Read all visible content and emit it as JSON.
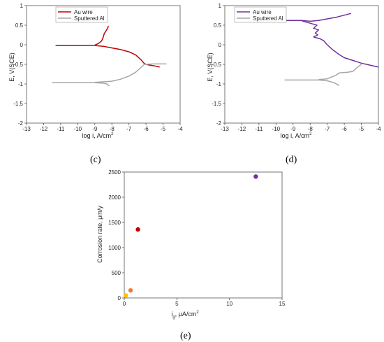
{
  "chart_data": [
    {
      "type": "line",
      "panel_label": "(c)",
      "xlabel": "log i, A/cm",
      "xlabel_sup": "2",
      "ylabel": "E, V(SCE)",
      "xlim": [
        -13,
        -4
      ],
      "ylim": [
        -2,
        1
      ],
      "xticks": [
        "-13",
        "-12",
        "-11",
        "-10",
        "-9",
        "-8",
        "-7",
        "-6",
        "-5",
        "-4"
      ],
      "yticks": [
        "-2",
        "-1.5",
        "-1",
        "-0.5",
        "0",
        "0.5",
        "1"
      ],
      "grid": false,
      "legend": "top-left",
      "series": [
        {
          "name": "Au wire",
          "color": "#c00000",
          "points": [
            [
              -11.3,
              -0.02
            ],
            [
              -10.5,
              -0.02
            ],
            [
              -10.0,
              -0.02
            ],
            [
              -9.5,
              -0.02
            ],
            [
              -9.0,
              -0.01
            ],
            [
              -8.8,
              0.03
            ],
            [
              -8.6,
              0.1
            ],
            [
              -8.5,
              0.2
            ],
            [
              -8.45,
              0.28
            ],
            [
              -8.35,
              0.35
            ],
            [
              -8.25,
              0.42
            ],
            [
              -8.2,
              0.48
            ],
            [
              -9.0,
              -0.02
            ],
            [
              -8.5,
              -0.04
            ],
            [
              -8.0,
              -0.08
            ],
            [
              -7.5,
              -0.12
            ],
            [
              -7.0,
              -0.18
            ],
            [
              -6.6,
              -0.26
            ],
            [
              -6.3,
              -0.38
            ],
            [
              -6.1,
              -0.48
            ],
            [
              -5.9,
              -0.51
            ],
            [
              -5.5,
              -0.54
            ],
            [
              -5.2,
              -0.57
            ]
          ]
        },
        {
          "name": "Sputtered Al",
          "color": "#a6a6a6",
          "points": [
            [
              -11.5,
              -0.97
            ],
            [
              -10.0,
              -0.97
            ],
            [
              -9.0,
              -0.97
            ],
            [
              -8.5,
              -0.98
            ],
            [
              -8.3,
              -1.0
            ],
            [
              -8.15,
              -1.05
            ],
            [
              -9.0,
              -0.96
            ],
            [
              -8.0,
              -0.93
            ],
            [
              -7.5,
              -0.88
            ],
            [
              -7.0,
              -0.8
            ],
            [
              -6.6,
              -0.7
            ],
            [
              -6.3,
              -0.58
            ],
            [
              -6.1,
              -0.5
            ],
            [
              -5.5,
              -0.49
            ],
            [
              -4.8,
              -0.49
            ]
          ]
        }
      ]
    },
    {
      "type": "line",
      "panel_label": "(d)",
      "xlabel": "log i, A/cm",
      "xlabel_sup": "2",
      "ylabel": "E, V(SCE)",
      "xlim": [
        -13,
        -4
      ],
      "ylim": [
        -2,
        1
      ],
      "xticks": [
        "-13",
        "-12",
        "-11",
        "-10",
        "-9",
        "-8",
        "-7",
        "-6",
        "-5",
        "-4"
      ],
      "yticks": [
        "-2",
        "-1.5",
        "-1",
        "-0.5",
        "0",
        "0.5",
        "1"
      ],
      "grid": false,
      "legend": "top-left",
      "series": [
        {
          "name": "Au wire",
          "color": "#7030a0",
          "points": [
            [
              -9.6,
              0.62
            ],
            [
              -9.0,
              0.62
            ],
            [
              -8.5,
              0.62
            ],
            [
              -8.0,
              0.6
            ],
            [
              -7.5,
              0.62
            ],
            [
              -6.5,
              0.7
            ],
            [
              -5.6,
              0.8
            ],
            [
              -8.5,
              0.61
            ],
            [
              -8.0,
              0.55
            ],
            [
              -7.6,
              0.5
            ],
            [
              -7.8,
              0.42
            ],
            [
              -7.5,
              0.38
            ],
            [
              -7.7,
              0.3
            ],
            [
              -7.55,
              0.25
            ],
            [
              -7.8,
              0.2
            ],
            [
              -7.4,
              0.15
            ],
            [
              -7.2,
              0.1
            ],
            [
              -7.0,
              0.0
            ],
            [
              -6.7,
              -0.12
            ],
            [
              -6.3,
              -0.25
            ],
            [
              -6.0,
              -0.33
            ],
            [
              -5.5,
              -0.4
            ],
            [
              -5.0,
              -0.47
            ],
            [
              -4.5,
              -0.52
            ],
            [
              -4.0,
              -0.57
            ]
          ]
        },
        {
          "name": "Sputtered Al",
          "color": "#a6a6a6",
          "points": [
            [
              -9.5,
              -0.9
            ],
            [
              -8.5,
              -0.9
            ],
            [
              -7.5,
              -0.9
            ],
            [
              -7.0,
              -0.92
            ],
            [
              -6.6,
              -0.97
            ],
            [
              -6.3,
              -1.04
            ],
            [
              -7.5,
              -0.89
            ],
            [
              -7.0,
              -0.87
            ],
            [
              -6.5,
              -0.78
            ],
            [
              -6.3,
              -0.72
            ],
            [
              -5.8,
              -0.7
            ],
            [
              -5.5,
              -0.68
            ],
            [
              -5.3,
              -0.6
            ],
            [
              -5.1,
              -0.53
            ],
            [
              -5.0,
              -0.5
            ]
          ]
        }
      ]
    },
    {
      "type": "scatter",
      "panel_label": "(e)",
      "xlabel": "i",
      "xlabel_sub": "g",
      "xlabel_rest": ", μA/cm",
      "xlabel_sup": "2",
      "ylabel": "Corrosion rate, μm/y",
      "xlim": [
        0,
        15
      ],
      "ylim": [
        0,
        2500
      ],
      "xticks": [
        "0",
        "5",
        "10",
        "15"
      ],
      "yticks": [
        "0",
        "500",
        "1000",
        "1500",
        "2000",
        "2500"
      ],
      "grid": false,
      "points": [
        {
          "x": 0.15,
          "y": 50,
          "color": "#ffc000"
        },
        {
          "x": 0.6,
          "y": 150,
          "color": "#ed7d31"
        },
        {
          "x": 1.3,
          "y": 1360,
          "color": "#c00000"
        },
        {
          "x": 12.5,
          "y": 2410,
          "color": "#7030a0"
        }
      ]
    }
  ]
}
